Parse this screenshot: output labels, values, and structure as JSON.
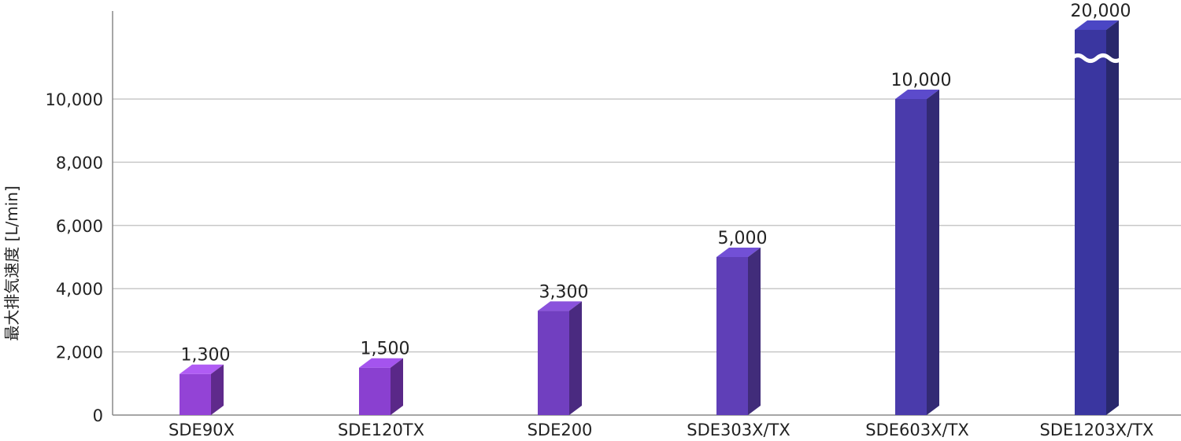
{
  "chart_data": {
    "type": "bar",
    "title": "",
    "xlabel": "",
    "ylabel": "最大排気速度 [L/min]",
    "categories": [
      "SDE90X",
      "SDE120TX",
      "SDE200",
      "SDE303X/TX",
      "SDE603X/TX",
      "SDE1203X/TX"
    ],
    "values": [
      1300,
      1500,
      3300,
      5000,
      10000,
      20000
    ],
    "value_labels": [
      "1,300",
      "1,500",
      "3,300",
      "5,000",
      "10,000",
      "20,000"
    ],
    "ylim": [
      0,
      10000
    ],
    "yticks": [
      0,
      2000,
      4000,
      6000,
      8000,
      10000
    ],
    "ytick_labels": [
      "0",
      "2,000",
      "4,000",
      "6,000",
      "8,000",
      "10,000"
    ],
    "axis_break": true,
    "grid": true,
    "legend": "none",
    "bar_colors": {
      "front": [
        "#9343d6",
        "#8a40d0",
        "#713fc0",
        "#5f3fb7",
        "#4a3bab",
        "#3a36a0"
      ],
      "top": [
        "#b05cf4",
        "#a454ee",
        "#8a52dc",
        "#7250d6",
        "#5c4bcc",
        "#4b46c4"
      ],
      "side": [
        "#5f2a8c",
        "#5a2888",
        "#4a2a80",
        "#412c7a",
        "#332a74",
        "#29286c"
      ]
    },
    "grid_color": "#c8c8c8",
    "axis_color": "#888888"
  }
}
